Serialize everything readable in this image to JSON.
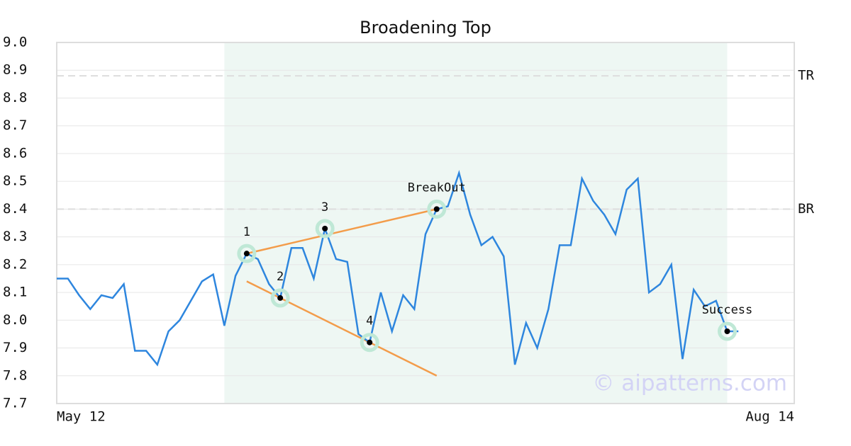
{
  "chart_data": {
    "type": "line",
    "title": "Broadening Top",
    "x": [
      0,
      1,
      2,
      3,
      4,
      5,
      6,
      7,
      8,
      9,
      10,
      11,
      12,
      13,
      14,
      15,
      16,
      17,
      18,
      19,
      20,
      21,
      22,
      23,
      24,
      25,
      26,
      27,
      28,
      29,
      30,
      31,
      32,
      33,
      34,
      35,
      36,
      37,
      38,
      39,
      40,
      41,
      42,
      43,
      44,
      45,
      46,
      47,
      48,
      49,
      50,
      51,
      52,
      53,
      54,
      55,
      56,
      57,
      58,
      59,
      60,
      61
    ],
    "series": [
      {
        "color": "#2e86de",
        "values": [
          8.15,
          8.15,
          8.09,
          8.04,
          8.09,
          8.08,
          8.13,
          7.89,
          7.89,
          7.84,
          7.96,
          8.0,
          8.07,
          8.14,
          8.165,
          7.98,
          8.16,
          8.24,
          8.22,
          8.13,
          8.08,
          8.26,
          8.26,
          8.15,
          8.33,
          8.22,
          8.21,
          7.95,
          7.92,
          8.1,
          7.96,
          8.09,
          8.04,
          8.31,
          8.4,
          8.41,
          8.53,
          8.38,
          8.27,
          8.3,
          8.23,
          7.84,
          7.99,
          7.9,
          8.04,
          8.27,
          8.27,
          8.51,
          8.43,
          8.38,
          8.31,
          8.47,
          8.51,
          8.1,
          8.13,
          8.2,
          7.86,
          8.11,
          8.05,
          8.07,
          7.96,
          7.96
        ]
      }
    ],
    "xlim": [
      0,
      66
    ],
    "xticks": [
      {
        "value": 0,
        "label": "May 12"
      },
      {
        "value": 66,
        "label": "Aug 14"
      }
    ],
    "ylim": [
      7.7,
      9.0
    ],
    "yticks": [
      7.7,
      7.8,
      7.9,
      {
        "value": 8.0,
        "label": "8.0"
      },
      8.1,
      8.2,
      8.3,
      8.4,
      8.5,
      8.6,
      8.7,
      8.8,
      8.9,
      {
        "value": 9.0,
        "label": "9.0"
      }
    ],
    "grid": true,
    "highlight": [
      15,
      60
    ],
    "highlight_color": "#eef7f3",
    "levels": [
      {
        "name": "TR",
        "value": 8.88
      },
      {
        "name": "BR",
        "value": 8.4
      }
    ],
    "points": [
      {
        "label": "1",
        "x": 17,
        "y": 8.24
      },
      {
        "label": "2",
        "x": 20,
        "y": 8.08
      },
      {
        "label": "3",
        "x": 24,
        "y": 8.33
      },
      {
        "label": "4",
        "x": 28,
        "y": 7.92
      },
      {
        "label": "BreakOut",
        "x": 34,
        "y": 8.4
      },
      {
        "label": "Success",
        "x": 60,
        "y": 7.96
      }
    ],
    "trendlines": [
      {
        "color": "#f39c4a",
        "x": [
          17,
          34
        ],
        "y": [
          8.24,
          8.4
        ]
      },
      {
        "color": "#f39c4a",
        "x": [
          17,
          34
        ],
        "y": [
          8.14,
          7.8
        ]
      }
    ],
    "watermark": "© aipatterns.com"
  }
}
